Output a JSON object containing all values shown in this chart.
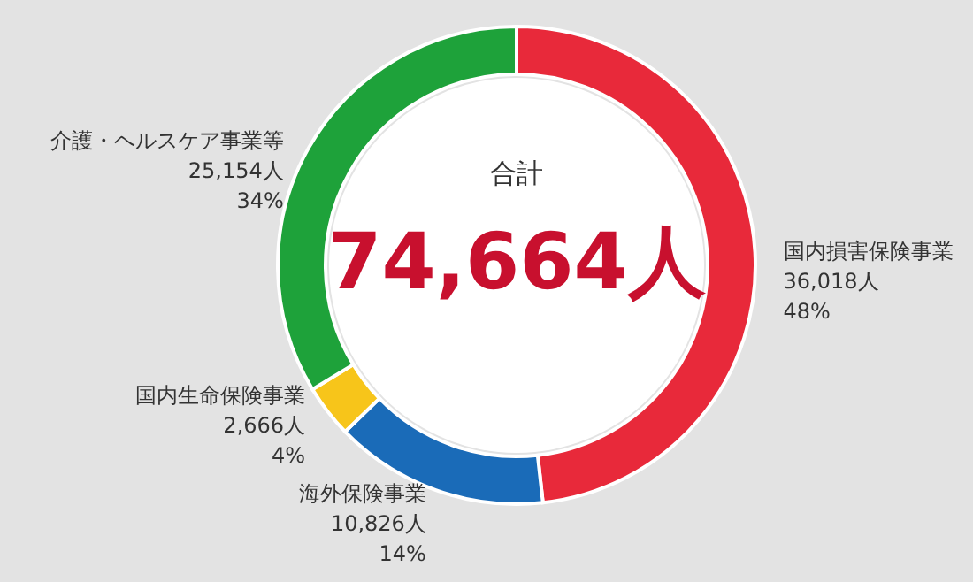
{
  "chart_data": {
    "type": "donut",
    "categories": [
      "国内損害保険事業",
      "海外保険事業",
      "国内生命保険事業",
      "介護・ヘルスケア事業等"
    ],
    "values": [
      36018,
      10826,
      2666,
      25154
    ],
    "value_labels": [
      "36,018人\n48%",
      "10,826人\n14%",
      "2,666人\n4%",
      "25,154人\n34%"
    ],
    "colors": [
      "#e8293a",
      "#1a6bb8",
      "#f7c51a",
      "#1ea23a"
    ],
    "annotations": [
      "合計",
      "74,664人"
    ]
  }
}
